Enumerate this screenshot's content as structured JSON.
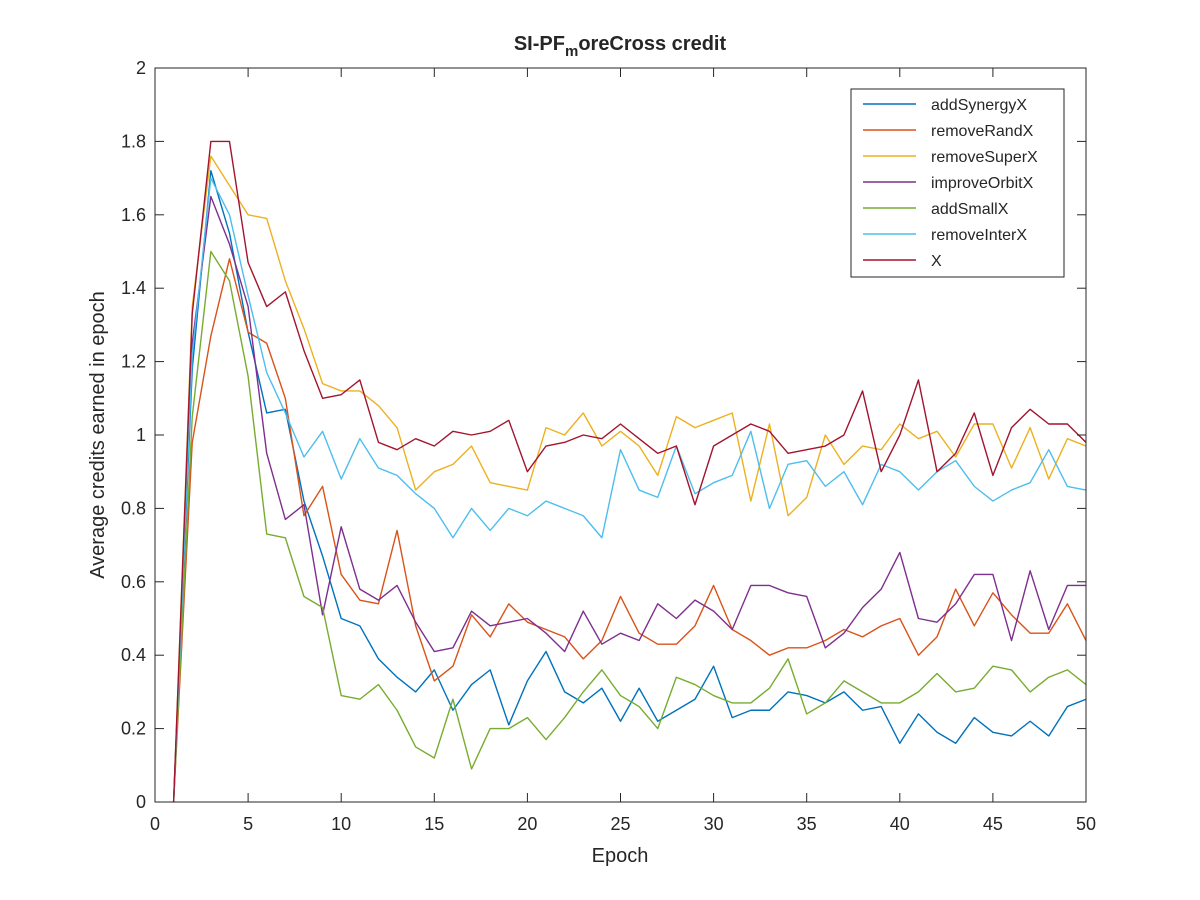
{
  "chart_data": {
    "type": "line",
    "title": {
      "prefix": "SI-PF",
      "subscript": "m",
      "suffix": "oreCross credit"
    },
    "xlabel": "Epoch",
    "ylabel": "Average credits earned in epoch",
    "xlim": [
      0,
      50
    ],
    "ylim": [
      0,
      2
    ],
    "xticks": [
      0,
      5,
      10,
      15,
      20,
      25,
      30,
      35,
      40,
      45,
      50
    ],
    "yticks": [
      0,
      0.2,
      0.4,
      0.6,
      0.8,
      1,
      1.2,
      1.4,
      1.6,
      1.8,
      2
    ],
    "grid": false,
    "legend_position": "top-right",
    "x": [
      1,
      2,
      3,
      4,
      5,
      6,
      7,
      8,
      9,
      10,
      11,
      12,
      13,
      14,
      15,
      16,
      17,
      18,
      19,
      20,
      21,
      22,
      23,
      24,
      25,
      26,
      27,
      28,
      29,
      30,
      31,
      32,
      33,
      34,
      35,
      36,
      37,
      38,
      39,
      40,
      41,
      42,
      43,
      44,
      45,
      46,
      47,
      48,
      49,
      50
    ],
    "series": [
      {
        "name": "addSynergyX",
        "color": "#0072BD",
        "values": [
          0,
          1.18,
          1.72,
          1.55,
          1.28,
          1.06,
          1.07,
          0.82,
          0.67,
          0.5,
          0.48,
          0.39,
          0.34,
          0.3,
          0.36,
          0.25,
          0.32,
          0.36,
          0.21,
          0.33,
          0.41,
          0.3,
          0.27,
          0.31,
          0.22,
          0.31,
          0.22,
          0.25,
          0.28,
          0.37,
          0.23,
          0.25,
          0.25,
          0.3,
          0.29,
          0.27,
          0.3,
          0.25,
          0.26,
          0.16,
          0.24,
          0.19,
          0.16,
          0.23,
          0.19,
          0.18,
          0.22,
          0.18,
          0.26,
          0.28
        ]
      },
      {
        "name": "removeRandX",
        "color": "#D95319",
        "values": [
          0,
          0.98,
          1.27,
          1.48,
          1.28,
          1.25,
          1.1,
          0.78,
          0.86,
          0.62,
          0.55,
          0.54,
          0.74,
          0.48,
          0.33,
          0.37,
          0.51,
          0.45,
          0.54,
          0.49,
          0.47,
          0.45,
          0.39,
          0.44,
          0.56,
          0.46,
          0.43,
          0.43,
          0.48,
          0.59,
          0.47,
          0.44,
          0.4,
          0.42,
          0.42,
          0.44,
          0.47,
          0.45,
          0.48,
          0.5,
          0.4,
          0.45,
          0.58,
          0.48,
          0.57,
          0.51,
          0.46,
          0.46,
          0.54,
          0.44
        ]
      },
      {
        "name": "removeSuperX",
        "color": "#EDB120",
        "values": [
          0,
          1.35,
          1.76,
          1.68,
          1.6,
          1.59,
          1.42,
          1.29,
          1.14,
          1.12,
          1.12,
          1.08,
          1.02,
          0.85,
          0.9,
          0.92,
          0.97,
          0.87,
          0.86,
          0.85,
          1.02,
          1.0,
          1.06,
          0.97,
          1.01,
          0.97,
          0.89,
          1.05,
          1.02,
          1.04,
          1.06,
          0.82,
          1.03,
          0.78,
          0.83,
          1.0,
          0.92,
          0.97,
          0.96,
          1.03,
          0.99,
          1.01,
          0.94,
          1.03,
          1.03,
          0.91,
          1.02,
          0.88,
          0.99,
          0.97
        ]
      },
      {
        "name": "improveOrbitX",
        "color": "#7E2F8E",
        "values": [
          0,
          1.25,
          1.65,
          1.52,
          1.35,
          0.95,
          0.77,
          0.81,
          0.51,
          0.75,
          0.58,
          0.55,
          0.59,
          0.49,
          0.41,
          0.42,
          0.52,
          0.48,
          0.49,
          0.5,
          0.46,
          0.41,
          0.52,
          0.43,
          0.46,
          0.44,
          0.54,
          0.5,
          0.55,
          0.52,
          0.47,
          0.59,
          0.59,
          0.57,
          0.56,
          0.42,
          0.46,
          0.53,
          0.58,
          0.68,
          0.5,
          0.49,
          0.54,
          0.62,
          0.62,
          0.44,
          0.63,
          0.47,
          0.59,
          0.59
        ]
      },
      {
        "name": "addSmallX",
        "color": "#77AC30",
        "values": [
          0,
          1.05,
          1.5,
          1.42,
          1.16,
          0.73,
          0.72,
          0.56,
          0.53,
          0.29,
          0.28,
          0.32,
          0.25,
          0.15,
          0.12,
          0.28,
          0.09,
          0.2,
          0.2,
          0.23,
          0.17,
          0.23,
          0.3,
          0.36,
          0.29,
          0.26,
          0.2,
          0.34,
          0.32,
          0.29,
          0.27,
          0.27,
          0.31,
          0.39,
          0.24,
          0.27,
          0.33,
          0.3,
          0.27,
          0.27,
          0.3,
          0.35,
          0.3,
          0.31,
          0.37,
          0.36,
          0.3,
          0.34,
          0.36,
          0.32
        ]
      },
      {
        "name": "removeInterX",
        "color": "#4DBEEE",
        "values": [
          0,
          1.22,
          1.7,
          1.6,
          1.38,
          1.17,
          1.06,
          0.94,
          1.01,
          0.88,
          0.99,
          0.91,
          0.89,
          0.84,
          0.8,
          0.72,
          0.8,
          0.74,
          0.8,
          0.78,
          0.82,
          0.8,
          0.78,
          0.72,
          0.96,
          0.85,
          0.83,
          0.97,
          0.84,
          0.87,
          0.89,
          1.01,
          0.8,
          0.92,
          0.93,
          0.86,
          0.9,
          0.81,
          0.92,
          0.9,
          0.85,
          0.9,
          0.93,
          0.86,
          0.82,
          0.85,
          0.87,
          0.96,
          0.86,
          0.85
        ]
      },
      {
        "name": "X",
        "color": "#A2142F",
        "values": [
          0,
          1.33,
          1.8,
          1.8,
          1.47,
          1.35,
          1.39,
          1.23,
          1.1,
          1.11,
          1.15,
          0.98,
          0.96,
          0.99,
          0.97,
          1.01,
          1.0,
          1.01,
          1.04,
          0.9,
          0.97,
          0.98,
          1.0,
          0.99,
          1.03,
          0.99,
          0.95,
          0.97,
          0.81,
          0.97,
          1.0,
          1.03,
          1.01,
          0.95,
          0.96,
          0.97,
          1.0,
          1.12,
          0.9,
          1.0,
          1.15,
          0.9,
          0.95,
          1.06,
          0.89,
          1.02,
          1.07,
          1.03,
          1.03,
          0.98
        ]
      }
    ]
  }
}
